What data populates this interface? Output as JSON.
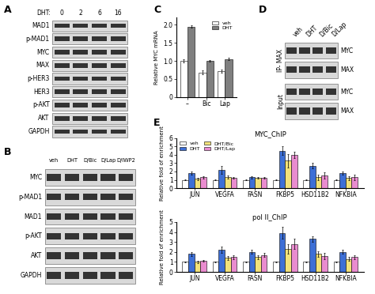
{
  "blots": [
    {
      "panel": "A",
      "header": "DHT:",
      "columns": [
        "0",
        "2",
        "6",
        "16"
      ],
      "rows": [
        "MAD1",
        "p-MAD1",
        "MYC",
        "MAX",
        "p-HER3",
        "HER3",
        "p-AKT",
        "AKT",
        "GAPDH"
      ]
    },
    {
      "panel": "B",
      "columns": [
        "veh",
        "DHT",
        "D/Bic",
        "D/Lap",
        "D/IWP2"
      ],
      "rows": [
        "MYC",
        "p-MAD1",
        "MAD1",
        "p-AKT",
        "AKT",
        "GAPDH"
      ]
    },
    {
      "panel": "D",
      "columns": [
        "veh",
        "DHT",
        "D/Bic",
        "D/Lap"
      ],
      "groups": [
        {
          "name": "IP- MAX",
          "rows": [
            "MYC",
            "MAX"
          ]
        },
        {
          "name": "Input",
          "rows": [
            "MYC",
            "MAX"
          ]
        }
      ]
    }
  ],
  "chart_data": [
    {
      "panel": "C",
      "type": "bar",
      "y_label": "Relative MYC mRNA",
      "categories": [
        "–",
        "Bic",
        "Lap"
      ],
      "series": [
        {
          "name": "veh",
          "color": "#ffffff",
          "values": [
            1.0,
            0.68,
            0.72
          ],
          "errors": [
            0.05,
            0.05,
            0.04
          ]
        },
        {
          "name": "DHT",
          "color": "#7f7f7f",
          "values": [
            1.95,
            1.0,
            1.05
          ],
          "errors": [
            0.03,
            0.02,
            0.03
          ]
        }
      ],
      "ylim": [
        0,
        2.2
      ],
      "yticks": [
        0,
        0.5,
        {
          "value": 1,
          "label": "1.0"
        },
        1.5,
        {
          "value": 2,
          "label": "2.0"
        }
      ],
      "legend": "upper right"
    },
    {
      "panel": "E",
      "type": "bar",
      "title": "MYC_ChIP",
      "y_label": "Relative fold of enrichment",
      "categories": [
        "JUN",
        "VEGFA",
        "FASN",
        "FKBP5",
        "HSD11B2",
        "NFKBIA"
      ],
      "series": [
        {
          "name": "veh",
          "color": "#ffffff",
          "values": [
            1.0,
            1.0,
            1.0,
            1.0,
            1.0,
            1.0
          ],
          "errors": [
            0.05,
            0.05,
            0.05,
            0.05,
            0.05,
            0.05
          ]
        },
        {
          "name": "DHT",
          "color": "#3d6fd6",
          "values": [
            1.8,
            2.2,
            1.3,
            4.5,
            2.7,
            1.8
          ],
          "errors": [
            0.2,
            0.5,
            0.15,
            0.5,
            0.3,
            0.2
          ]
        },
        {
          "name": "DHT/Bic",
          "color": "#f2e27a",
          "values": [
            1.1,
            1.3,
            1.2,
            3.3,
            1.3,
            1.2
          ],
          "errors": [
            0.1,
            0.2,
            0.1,
            0.8,
            0.3,
            0.2
          ]
        },
        {
          "name": "DHT/Lap",
          "color": "#e98ccf",
          "values": [
            1.3,
            1.2,
            1.2,
            4.0,
            1.5,
            1.3
          ],
          "errors": [
            0.15,
            0.1,
            0.1,
            0.4,
            0.4,
            0.3
          ]
        }
      ],
      "ylim": [
        0,
        6
      ],
      "yticks": [
        0,
        1,
        2,
        3,
        4,
        5,
        6
      ],
      "legend": "upper left"
    },
    {
      "panel": "",
      "type": "bar",
      "title": "pol II_ChIP",
      "y_label": "Relative fold of enrichment",
      "categories": [
        "JUN",
        "VEGFA",
        "FASN",
        "FKBP5",
        "HSD11B2",
        "NFKBIA"
      ],
      "series": [
        {
          "name": "veh",
          "color": "#ffffff",
          "values": [
            1.0,
            1.0,
            1.0,
            1.0,
            1.0,
            1.0
          ],
          "errors": [
            0.05,
            0.05,
            0.05,
            0.05,
            0.05,
            0.05
          ]
        },
        {
          "name": "DHT",
          "color": "#3d6fd6",
          "values": [
            1.8,
            2.2,
            2.0,
            3.9,
            3.3,
            2.0
          ],
          "errors": [
            0.2,
            0.3,
            0.2,
            0.6,
            0.3,
            0.2
          ]
        },
        {
          "name": "DHT/Bic",
          "color": "#f2e27a",
          "values": [
            1.0,
            1.4,
            1.5,
            2.3,
            1.8,
            1.3
          ],
          "errors": [
            0.1,
            0.2,
            0.2,
            0.5,
            0.3,
            0.2
          ]
        },
        {
          "name": "DHT/Lap",
          "color": "#e98ccf",
          "values": [
            1.1,
            1.5,
            1.7,
            2.8,
            1.6,
            1.5
          ],
          "errors": [
            0.1,
            0.2,
            0.2,
            0.5,
            0.3,
            0.2
          ]
        }
      ],
      "ylim": [
        0,
        5
      ],
      "yticks": [
        0,
        1,
        2,
        3,
        4,
        5
      ]
    }
  ]
}
